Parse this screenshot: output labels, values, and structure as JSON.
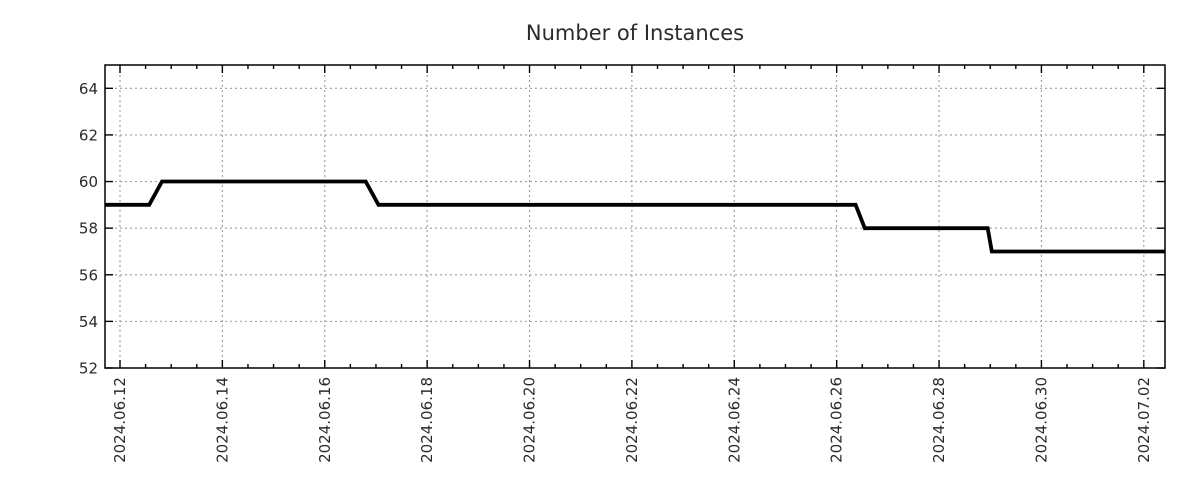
{
  "colors": {
    "background": "#ffffff",
    "line": "#000000",
    "grid": "#9c9c9c",
    "axis": "#000000",
    "text": "#2b2b2b"
  },
  "chart_data": {
    "type": "line",
    "title": "Number of Instances",
    "xlabel": "",
    "ylabel": "",
    "legend": "none",
    "grid": "dotted gray gridlines at major ticks, mirrored inward tick marks on all four sides",
    "step_like": true,
    "ylim": [
      52,
      65
    ],
    "y_ticks": [
      52,
      54,
      56,
      58,
      60,
      62,
      64
    ],
    "xlim_day": [
      11.707,
      32.414
    ],
    "x_minor_tick_interval_days": 0.5,
    "x_major_ticks": [
      {
        "day": 12,
        "label": "2024.06.12"
      },
      {
        "day": 14,
        "label": "2024.06.14"
      },
      {
        "day": 16,
        "label": "2024.06.16"
      },
      {
        "day": 18,
        "label": "2024.06.18"
      },
      {
        "day": 20,
        "label": "2024.06.20"
      },
      {
        "day": 22,
        "label": "2024.06.22"
      },
      {
        "day": 24,
        "label": "2024.06.24"
      },
      {
        "day": 26,
        "label": "2024.06.26"
      },
      {
        "day": 28,
        "label": "2024.06.28"
      },
      {
        "day": 30,
        "label": "2024.06.30"
      },
      {
        "day": 32,
        "label": "2024.07.02"
      }
    ],
    "series": [
      {
        "name": "number-of-instances",
        "color": "#000000",
        "line_width": 3.8,
        "points_day_value": [
          [
            11.707,
            59
          ],
          [
            12.57,
            59
          ],
          [
            12.82,
            60
          ],
          [
            16.8,
            60
          ],
          [
            17.05,
            59
          ],
          [
            26.37,
            59
          ],
          [
            26.55,
            58
          ],
          [
            28.95,
            58
          ],
          [
            29.03,
            57
          ],
          [
            32.414,
            57
          ]
        ],
        "transitions": [
          {
            "at": "plot start (just before 2024.06.12)",
            "value": 59
          },
          {
            "at": "2024.06.12 (afternoon) rises to",
            "value": 60
          },
          {
            "at": "2024.06.17 (around midnight) drops to",
            "value": 59
          },
          {
            "at": "2024.06.26 (around midday) drops to",
            "value": 58
          },
          {
            "at": "2024.06.29 (around midnight) drops to",
            "value": 57
          },
          {
            "at": "plot end (2024.07.02)",
            "value": 57
          }
        ]
      }
    ]
  }
}
